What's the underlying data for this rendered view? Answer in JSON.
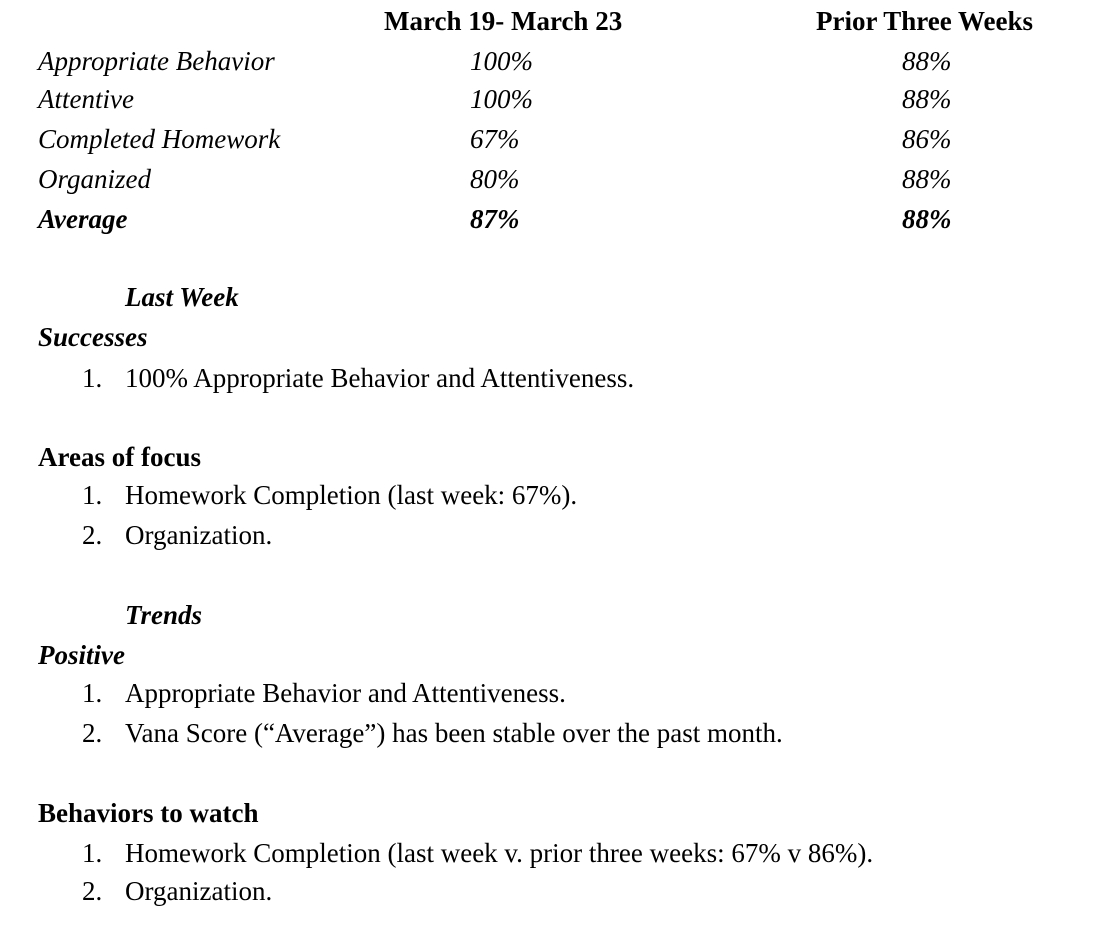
{
  "table": {
    "headers": [
      "March 19- March 23",
      "Prior Three Weeks"
    ],
    "rows": [
      {
        "label": "Appropriate Behavior",
        "current": "100%",
        "prior": "88%"
      },
      {
        "label": "Attentive",
        "current": "100%",
        "prior": "88%"
      },
      {
        "label": "Completed Homework",
        "current": "67%",
        "prior": "86%"
      },
      {
        "label": "Organized",
        "current": "80%",
        "prior": "88%"
      }
    ],
    "average": {
      "label": "Average",
      "current": "87%",
      "prior": "88%"
    }
  },
  "last_week": {
    "heading": "Last Week",
    "successes": {
      "heading": "Successes",
      "items": [
        {
          "num": "1.",
          "text": "100% Appropriate Behavior and Attentiveness."
        }
      ]
    },
    "focus": {
      "heading": "Areas of focus",
      "items": [
        {
          "num": "1.",
          "text": "Homework Completion (last week: 67%)."
        },
        {
          "num": "2.",
          "text": "Organization."
        }
      ]
    }
  },
  "trends": {
    "heading": "Trends",
    "positive": {
      "heading": "Positive",
      "items": [
        {
          "num": "1.",
          "text": "Appropriate Behavior and Attentiveness."
        },
        {
          "num": "2.",
          "text": "Vana Score (“Average”) has been stable over the past month."
        }
      ]
    },
    "watch": {
      "heading": "Behaviors to watch",
      "items": [
        {
          "num": "1.",
          "text": "Homework Completion (last week v. prior three weeks: 67% v 86%)."
        },
        {
          "num": "2.",
          "text": "Organization."
        }
      ]
    }
  }
}
